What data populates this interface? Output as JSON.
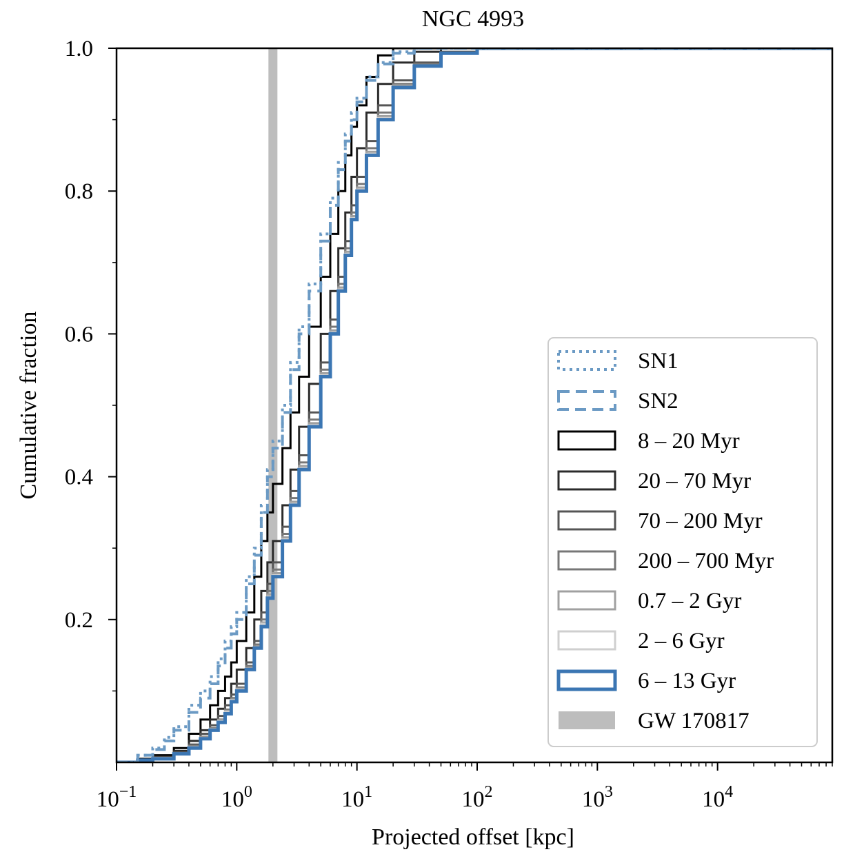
{
  "chart_data": {
    "type": "line",
    "title": "NGC 4993",
    "xlabel": "Projected offset [kpc]",
    "ylabel": "Cumulative fraction",
    "xscale": "log",
    "xlim": [
      0.1,
      90000
    ],
    "ylim": [
      0.0,
      1.0
    ],
    "grid": false,
    "legend_position": "lower-right",
    "x_tick_labels": [
      {
        "base": "10",
        "exp": "−1",
        "value": 0.1
      },
      {
        "base": "10",
        "exp": "0",
        "value": 1
      },
      {
        "base": "10",
        "exp": "1",
        "value": 10
      },
      {
        "base": "10",
        "exp": "2",
        "value": 100
      },
      {
        "base": "10",
        "exp": "3",
        "value": 1000
      },
      {
        "base": "10",
        "exp": "4",
        "value": 10000
      }
    ],
    "y_tick_labels": [
      {
        "text": "0.2",
        "value": 0.2
      },
      {
        "text": "0.4",
        "value": 0.4
      },
      {
        "text": "0.6",
        "value": 0.6
      },
      {
        "text": "0.8",
        "value": 0.8
      },
      {
        "text": "1.0",
        "value": 1.0
      }
    ],
    "series": [
      {
        "name": "SN1",
        "color": "#6b9ac4",
        "style": "dotted",
        "width": 4,
        "x": [
          0.1,
          0.15,
          0.2,
          0.25,
          0.3,
          0.4,
          0.5,
          0.6,
          0.7,
          0.8,
          0.9,
          1.0,
          1.2,
          1.4,
          1.6,
          1.8,
          2.0,
          2.4,
          2.8,
          3.3,
          4.0,
          5.0,
          6.0,
          7.0,
          8.0,
          9.0,
          10.0,
          12.0,
          15.0,
          20.0,
          30.0,
          50.0,
          90000
        ],
        "y": [
          0.0,
          0.01,
          0.02,
          0.035,
          0.05,
          0.08,
          0.1,
          0.12,
          0.145,
          0.17,
          0.19,
          0.21,
          0.26,
          0.3,
          0.36,
          0.41,
          0.45,
          0.5,
          0.56,
          0.61,
          0.67,
          0.74,
          0.79,
          0.84,
          0.88,
          0.91,
          0.93,
          0.96,
          0.98,
          0.995,
          1.0,
          1.0,
          1.0
        ]
      },
      {
        "name": "SN2",
        "color": "#6b9ac4",
        "style": "dashed",
        "width": 4,
        "x": [
          0.1,
          0.15,
          0.2,
          0.25,
          0.3,
          0.4,
          0.5,
          0.6,
          0.7,
          0.8,
          0.9,
          1.0,
          1.2,
          1.4,
          1.6,
          1.8,
          2.0,
          2.4,
          2.8,
          3.3,
          4.0,
          5.0,
          6.0,
          7.0,
          8.0,
          9.0,
          10.0,
          12.0,
          15.0,
          20.0,
          30.0,
          50.0,
          90000
        ],
        "y": [
          0.0,
          0.01,
          0.018,
          0.03,
          0.045,
          0.07,
          0.09,
          0.11,
          0.135,
          0.16,
          0.18,
          0.2,
          0.25,
          0.29,
          0.35,
          0.4,
          0.44,
          0.49,
          0.55,
          0.6,
          0.66,
          0.73,
          0.78,
          0.83,
          0.87,
          0.9,
          0.925,
          0.955,
          0.978,
          0.993,
          1.0,
          1.0,
          1.0
        ]
      },
      {
        "name": "8 – 20 Myr",
        "color": "#000000",
        "style": "solid",
        "width": 3,
        "x": [
          0.1,
          0.15,
          0.2,
          0.3,
          0.4,
          0.5,
          0.6,
          0.7,
          0.8,
          0.9,
          1.0,
          1.2,
          1.4,
          1.6,
          1.8,
          2.0,
          2.4,
          2.8,
          3.3,
          4.0,
          5.0,
          6.0,
          7.0,
          8.0,
          9.0,
          10.0,
          12.0,
          15.0,
          20.0,
          30.0,
          90000
        ],
        "y": [
          0.0,
          0.005,
          0.01,
          0.02,
          0.04,
          0.06,
          0.08,
          0.1,
          0.12,
          0.14,
          0.17,
          0.21,
          0.26,
          0.31,
          0.35,
          0.39,
          0.44,
          0.49,
          0.54,
          0.61,
          0.68,
          0.74,
          0.8,
          0.85,
          0.89,
          0.92,
          0.96,
          0.99,
          1.0,
          1.0,
          1.0
        ]
      },
      {
        "name": "20 – 70 Myr",
        "color": "#2b2b2b",
        "style": "solid",
        "width": 3,
        "x": [
          0.1,
          0.15,
          0.2,
          0.3,
          0.4,
          0.5,
          0.6,
          0.7,
          0.8,
          0.9,
          1.0,
          1.2,
          1.4,
          1.6,
          1.8,
          2.0,
          2.4,
          2.8,
          3.3,
          4.0,
          5.0,
          6.0,
          7.0,
          8.0,
          9.0,
          10.0,
          12.0,
          15.0,
          20.0,
          30.0,
          50.0,
          90000
        ],
        "y": [
          0.0,
          0.004,
          0.008,
          0.016,
          0.03,
          0.045,
          0.06,
          0.075,
          0.09,
          0.11,
          0.13,
          0.16,
          0.2,
          0.24,
          0.28,
          0.31,
          0.36,
          0.41,
          0.47,
          0.53,
          0.6,
          0.66,
          0.72,
          0.77,
          0.82,
          0.86,
          0.91,
          0.95,
          0.98,
          0.995,
          1.0,
          1.0
        ]
      },
      {
        "name": "70 – 200 Myr",
        "color": "#555555",
        "style": "solid",
        "width": 3,
        "x": [
          0.1,
          0.15,
          0.2,
          0.3,
          0.4,
          0.5,
          0.6,
          0.7,
          0.8,
          0.9,
          1.0,
          1.2,
          1.4,
          1.6,
          1.8,
          2.0,
          2.4,
          2.8,
          3.3,
          4.0,
          5.0,
          6.0,
          7.0,
          8.0,
          9.0,
          10.0,
          12.0,
          15.0,
          20.0,
          30.0,
          50.0,
          100.0,
          90000
        ],
        "y": [
          0.0,
          0.003,
          0.007,
          0.014,
          0.025,
          0.04,
          0.052,
          0.065,
          0.08,
          0.095,
          0.11,
          0.14,
          0.17,
          0.21,
          0.25,
          0.28,
          0.33,
          0.38,
          0.43,
          0.49,
          0.56,
          0.62,
          0.68,
          0.73,
          0.78,
          0.82,
          0.87,
          0.92,
          0.955,
          0.98,
          0.995,
          1.0,
          1.0
        ]
      },
      {
        "name": "200 – 700 Myr",
        "color": "#777777",
        "style": "solid",
        "width": 3,
        "x": [
          0.1,
          0.15,
          0.2,
          0.3,
          0.4,
          0.5,
          0.6,
          0.7,
          0.8,
          0.9,
          1.0,
          1.2,
          1.4,
          1.6,
          1.8,
          2.0,
          2.4,
          2.8,
          3.3,
          4.0,
          5.0,
          6.0,
          7.0,
          8.0,
          9.0,
          10.0,
          12.0,
          15.0,
          20.0,
          30.0,
          50.0,
          100.0,
          90000
        ],
        "y": [
          0.0,
          0.003,
          0.006,
          0.013,
          0.023,
          0.036,
          0.048,
          0.06,
          0.074,
          0.09,
          0.105,
          0.135,
          0.165,
          0.2,
          0.24,
          0.27,
          0.32,
          0.37,
          0.42,
          0.48,
          0.55,
          0.61,
          0.67,
          0.72,
          0.77,
          0.81,
          0.86,
          0.91,
          0.95,
          0.978,
          0.994,
          1.0,
          1.0
        ]
      },
      {
        "name": "0.7 – 2 Gyr",
        "color": "#a0a0a0",
        "style": "solid",
        "width": 3,
        "x": [
          0.1,
          0.15,
          0.2,
          0.3,
          0.4,
          0.5,
          0.6,
          0.7,
          0.8,
          0.9,
          1.0,
          1.2,
          1.4,
          1.6,
          1.8,
          2.0,
          2.4,
          2.8,
          3.3,
          4.0,
          5.0,
          6.0,
          7.0,
          8.0,
          9.0,
          10.0,
          12.0,
          15.0,
          20.0,
          30.0,
          50.0,
          100.0,
          90000
        ],
        "y": [
          0.0,
          0.003,
          0.006,
          0.012,
          0.022,
          0.035,
          0.047,
          0.059,
          0.072,
          0.088,
          0.103,
          0.132,
          0.162,
          0.196,
          0.235,
          0.265,
          0.315,
          0.365,
          0.415,
          0.475,
          0.545,
          0.605,
          0.665,
          0.715,
          0.765,
          0.805,
          0.855,
          0.905,
          0.948,
          0.976,
          0.993,
          1.0,
          1.0
        ]
      },
      {
        "name": "2 – 6 Gyr",
        "color": "#cfcfcf",
        "style": "solid",
        "width": 3,
        "x": [
          0.1,
          0.15,
          0.2,
          0.3,
          0.4,
          0.5,
          0.6,
          0.7,
          0.8,
          0.9,
          1.0,
          1.2,
          1.4,
          1.6,
          1.8,
          2.0,
          2.4,
          2.8,
          3.3,
          4.0,
          5.0,
          6.0,
          7.0,
          8.0,
          9.0,
          10.0,
          12.0,
          15.0,
          20.0,
          30.0,
          50.0,
          100.0,
          90000
        ],
        "y": [
          0.0,
          0.003,
          0.006,
          0.012,
          0.021,
          0.034,
          0.046,
          0.058,
          0.071,
          0.087,
          0.102,
          0.13,
          0.16,
          0.194,
          0.232,
          0.262,
          0.312,
          0.362,
          0.412,
          0.472,
          0.542,
          0.602,
          0.662,
          0.712,
          0.762,
          0.802,
          0.852,
          0.902,
          0.946,
          0.975,
          0.993,
          1.0,
          1.0
        ]
      },
      {
        "name": "6 – 13 Gyr",
        "color": "#3b76b3",
        "style": "solid",
        "width": 5,
        "x": [
          0.1,
          0.15,
          0.2,
          0.3,
          0.4,
          0.5,
          0.6,
          0.7,
          0.8,
          0.9,
          1.0,
          1.2,
          1.4,
          1.6,
          1.8,
          2.0,
          2.4,
          2.8,
          3.3,
          4.0,
          5.0,
          6.0,
          7.0,
          8.0,
          9.0,
          10.0,
          12.0,
          15.0,
          20.0,
          30.0,
          50.0,
          100.0,
          90000
        ],
        "y": [
          0.0,
          0.003,
          0.005,
          0.012,
          0.02,
          0.033,
          0.045,
          0.056,
          0.068,
          0.085,
          0.1,
          0.13,
          0.16,
          0.19,
          0.23,
          0.26,
          0.31,
          0.36,
          0.41,
          0.47,
          0.54,
          0.6,
          0.66,
          0.71,
          0.76,
          0.8,
          0.85,
          0.9,
          0.945,
          0.975,
          0.993,
          1.0,
          1.0
        ]
      }
    ],
    "vline": {
      "name": "GW 170817",
      "x": 2.0,
      "color": "#bdbdbd"
    }
  }
}
